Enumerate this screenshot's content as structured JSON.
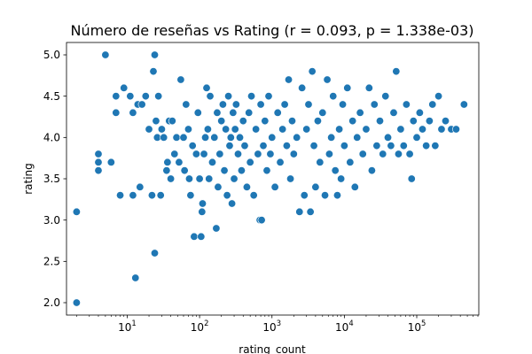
{
  "chart_data": {
    "type": "scatter",
    "title": "Número de reseñas vs Rating (r = 0.093, p = 1.338e-03)",
    "xlabel": "rating_count",
    "ylabel": "rating",
    "xscale": "log",
    "xlim": [
      1.45,
      720000
    ],
    "ylim": [
      1.85,
      5.15
    ],
    "grid": false,
    "x_ticks": [
      {
        "value": 10,
        "base": "10",
        "exp": "1"
      },
      {
        "value": 100,
        "base": "10",
        "exp": "2"
      },
      {
        "value": 1000,
        "base": "10",
        "exp": "3"
      },
      {
        "value": 10000,
        "base": "10",
        "exp": "4"
      },
      {
        "value": 100000,
        "base": "10",
        "exp": "5"
      }
    ],
    "y_ticks": [
      {
        "value": 2.0,
        "label": "2.0"
      },
      {
        "value": 2.5,
        "label": "2.5"
      },
      {
        "value": 3.0,
        "label": "3.0"
      },
      {
        "value": 3.5,
        "label": "3.5"
      },
      {
        "value": 4.0,
        "label": "4.0"
      },
      {
        "value": 4.5,
        "label": "4.5"
      }
    ],
    "y_ticks_extra": [
      {
        "value": 5.0,
        "label": "5.0"
      }
    ],
    "color": "#1f77b4",
    "points": [
      [
        2,
        2.0
      ],
      [
        2,
        3.1
      ],
      [
        4,
        3.6
      ],
      [
        4,
        3.7
      ],
      [
        4,
        3.8
      ],
      [
        5,
        5.0
      ],
      [
        6,
        3.7
      ],
      [
        7,
        4.3
      ],
      [
        7,
        4.5
      ],
      [
        8,
        3.3
      ],
      [
        9,
        4.6
      ],
      [
        11,
        4.5
      ],
      [
        12,
        3.3
      ],
      [
        12,
        4.3
      ],
      [
        13,
        2.3
      ],
      [
        14,
        4.4
      ],
      [
        15,
        3.4
      ],
      [
        16,
        4.4
      ],
      [
        18,
        4.5
      ],
      [
        20,
        4.1
      ],
      [
        22,
        3.3
      ],
      [
        23,
        4.8
      ],
      [
        24,
        5.0
      ],
      [
        24,
        2.6
      ],
      [
        25,
        4.2
      ],
      [
        26,
        4.0
      ],
      [
        27,
        4.5
      ],
      [
        29,
        3.3
      ],
      [
        30,
        4.1
      ],
      [
        32,
        4.0
      ],
      [
        35,
        3.6
      ],
      [
        36,
        3.7
      ],
      [
        38,
        4.2
      ],
      [
        40,
        3.5
      ],
      [
        42,
        4.2
      ],
      [
        45,
        3.8
      ],
      [
        48,
        4.0
      ],
      [
        52,
        3.7
      ],
      [
        55,
        4.7
      ],
      [
        60,
        4.0
      ],
      [
        62,
        3.6
      ],
      [
        65,
        4.4
      ],
      [
        70,
        4.1
      ],
      [
        72,
        3.5
      ],
      [
        75,
        3.3
      ],
      [
        80,
        3.9
      ],
      [
        84,
        2.8
      ],
      [
        90,
        3.8
      ],
      [
        95,
        4.3
      ],
      [
        100,
        3.5
      ],
      [
        105,
        2.8
      ],
      [
        108,
        3.1
      ],
      [
        110,
        3.2
      ],
      [
        115,
        3.8
      ],
      [
        120,
        4.0
      ],
      [
        125,
        4.6
      ],
      [
        130,
        4.1
      ],
      [
        135,
        3.5
      ],
      [
        140,
        4.5
      ],
      [
        150,
        3.7
      ],
      [
        160,
        4.0
      ],
      [
        170,
        2.9
      ],
      [
        175,
        4.3
      ],
      [
        180,
        3.4
      ],
      [
        190,
        3.8
      ],
      [
        200,
        4.2
      ],
      [
        210,
        4.4
      ],
      [
        220,
        3.6
      ],
      [
        230,
        4.1
      ],
      [
        240,
        3.3
      ],
      [
        250,
        4.5
      ],
      [
        260,
        3.9
      ],
      [
        270,
        4.0
      ],
      [
        280,
        3.2
      ],
      [
        290,
        4.3
      ],
      [
        300,
        3.5
      ],
      [
        310,
        4.1
      ],
      [
        320,
        4.4
      ],
      [
        340,
        3.8
      ],
      [
        360,
        4.0
      ],
      [
        380,
        3.6
      ],
      [
        400,
        4.2
      ],
      [
        420,
        3.9
      ],
      [
        450,
        3.4
      ],
      [
        480,
        4.3
      ],
      [
        500,
        3.7
      ],
      [
        520,
        4.5
      ],
      [
        560,
        3.3
      ],
      [
        600,
        4.1
      ],
      [
        640,
        3.8
      ],
      [
        680,
        3.0
      ],
      [
        700,
        4.4
      ],
      [
        720,
        3.0
      ],
      [
        760,
        3.9
      ],
      [
        800,
        4.2
      ],
      [
        850,
        3.6
      ],
      [
        900,
        4.5
      ],
      [
        950,
        3.8
      ],
      [
        1000,
        4.0
      ],
      [
        1100,
        3.4
      ],
      [
        1200,
        4.3
      ],
      [
        1300,
        3.7
      ],
      [
        1400,
        4.1
      ],
      [
        1500,
        4.4
      ],
      [
        1600,
        3.9
      ],
      [
        1700,
        4.7
      ],
      [
        1800,
        3.5
      ],
      [
        1900,
        4.2
      ],
      [
        2000,
        3.8
      ],
      [
        2200,
        4.0
      ],
      [
        2400,
        3.1
      ],
      [
        2600,
        4.6
      ],
      [
        2800,
        3.3
      ],
      [
        3000,
        4.1
      ],
      [
        3200,
        4.4
      ],
      [
        3400,
        3.1
      ],
      [
        3600,
        4.8
      ],
      [
        3800,
        3.9
      ],
      [
        4000,
        3.4
      ],
      [
        4300,
        4.2
      ],
      [
        4600,
        3.7
      ],
      [
        5000,
        4.3
      ],
      [
        5400,
        3.3
      ],
      [
        5800,
        4.7
      ],
      [
        6200,
        3.8
      ],
      [
        6600,
        4.0
      ],
      [
        7000,
        4.5
      ],
      [
        7500,
        3.6
      ],
      [
        8000,
        3.3
      ],
      [
        8500,
        4.1
      ],
      [
        9000,
        3.5
      ],
      [
        9500,
        4.4
      ],
      [
        10000,
        3.9
      ],
      [
        11000,
        4.6
      ],
      [
        12000,
        3.7
      ],
      [
        13000,
        4.2
      ],
      [
        14000,
        3.4
      ],
      [
        15000,
        4.0
      ],
      [
        16500,
        4.3
      ],
      [
        18000,
        3.8
      ],
      [
        20000,
        4.1
      ],
      [
        22000,
        4.6
      ],
      [
        24000,
        3.6
      ],
      [
        26000,
        4.4
      ],
      [
        28000,
        3.9
      ],
      [
        31000,
        4.2
      ],
      [
        34000,
        3.8
      ],
      [
        37000,
        4.5
      ],
      [
        40000,
        4.0
      ],
      [
        44000,
        3.9
      ],
      [
        48000,
        4.3
      ],
      [
        52000,
        4.8
      ],
      [
        56000,
        3.8
      ],
      [
        60000,
        4.1
      ],
      [
        66000,
        3.9
      ],
      [
        72000,
        4.4
      ],
      [
        80000,
        3.8
      ],
      [
        85000,
        3.5
      ],
      [
        90000,
        4.2
      ],
      [
        100000,
        4.0
      ],
      [
        110000,
        4.3
      ],
      [
        120000,
        4.1
      ],
      [
        135000,
        3.9
      ],
      [
        150000,
        4.2
      ],
      [
        165000,
        4.4
      ],
      [
        180000,
        3.9
      ],
      [
        200000,
        4.5
      ],
      [
        220000,
        4.1
      ],
      [
        250000,
        4.2
      ],
      [
        300000,
        4.1
      ],
      [
        350000,
        4.1
      ],
      [
        450000,
        4.4
      ]
    ]
  }
}
